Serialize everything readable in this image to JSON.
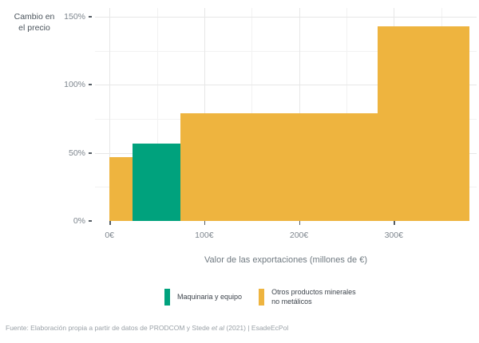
{
  "y_axis_block_title": "Cambio en\nel precio",
  "chart_data": {
    "type": "bar",
    "variant": "variable-width step bars (marginal curve)",
    "title": "",
    "xlabel": "Valor de las exportaciones (millones de €)",
    "ylabel": "Cambio en el precio",
    "xlim": [
      -15.3,
      387.4
    ],
    "ylim": [
      0,
      156.4
    ],
    "grid": true,
    "legend_position": "bottom",
    "x_ticks": [
      {
        "value": 0,
        "label": "0€"
      },
      {
        "value": 100,
        "label": "100€"
      },
      {
        "value": 200,
        "label": "200€"
      },
      {
        "value": 300,
        "label": "300€"
      }
    ],
    "x_minor_gridlines": [
      50,
      150,
      250,
      350
    ],
    "y_ticks": [
      {
        "value": 0,
        "label": "0%"
      },
      {
        "value": 50,
        "label": "50%"
      },
      {
        "value": 100,
        "label": "100%"
      },
      {
        "value": 150,
        "label": "150%"
      }
    ],
    "y_minor_gridlines": [
      25,
      75,
      125
    ],
    "series": [
      {
        "name": "Maquinaria y equipo",
        "color": "#00A27D",
        "segments": [
          {
            "x_start": 24,
            "x_end": 75,
            "value": 57
          }
        ]
      },
      {
        "name": "Otros productos minerales no metálicos",
        "color": "#EEB43F",
        "segments": [
          {
            "x_start": 0,
            "x_end": 24,
            "value": 47
          },
          {
            "x_start": 75,
            "x_end": 283,
            "value": 79
          },
          {
            "x_start": 283,
            "x_end": 380,
            "value": 143
          }
        ]
      }
    ]
  },
  "legend": {
    "items": [
      {
        "label": "Maquinaria y equipo",
        "color": "#00A27D"
      },
      {
        "label": "Otros productos minerales\nno metálicos",
        "color": "#EEB43F"
      }
    ]
  },
  "footer": {
    "prefix": "Fuente: Elaboración propia a partir de datos de PRODCOM y Stede ",
    "italic": "et al",
    "suffix": " (2021) | EsadeEcPol"
  },
  "colors": {
    "green": "#00A27D",
    "yellow": "#EEB43F",
    "gridline_major": "#e7e7e7",
    "gridline_minor": "#f2f2f2",
    "tick_label": "#7e868e",
    "axis_title": "#6f7980",
    "y_title": "#4b545c",
    "legend_text": "#3d444c",
    "footer_text": "#9aa1a7",
    "background": "#ffffff"
  }
}
